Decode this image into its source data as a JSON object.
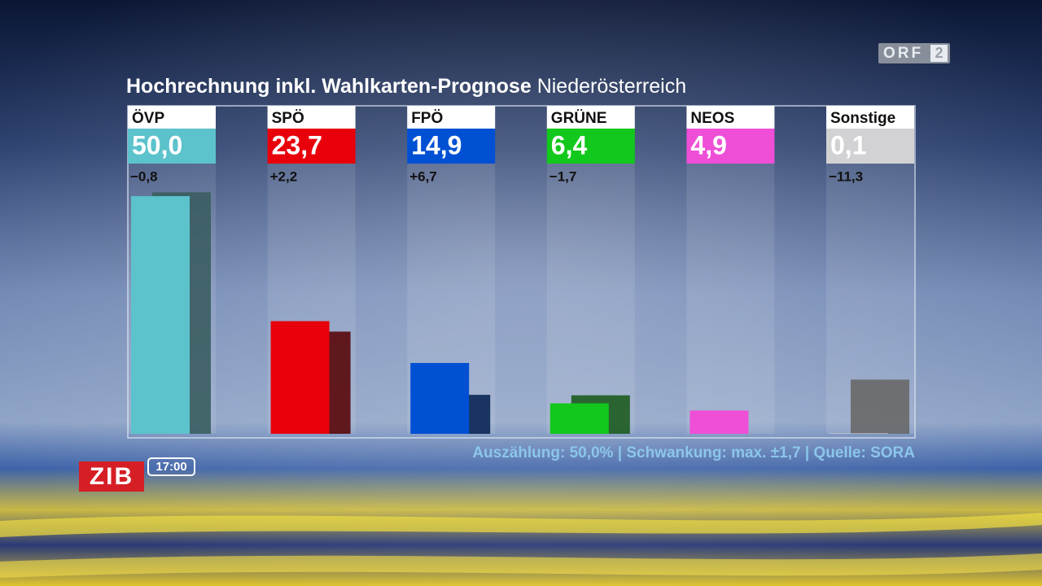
{
  "channel": {
    "name": "ORF",
    "number": "2"
  },
  "show": {
    "name": "ZIB",
    "time": "17:00"
  },
  "chart_data": {
    "type": "bar",
    "title": "Hochrechnung inkl. Wahlkarten-Prognose",
    "subtitle": "Niederösterreich",
    "categories": [
      "ÖVP",
      "SPÖ",
      "FPÖ",
      "GRÜNE",
      "NEOS",
      "Sonstige"
    ],
    "values": [
      50.0,
      23.7,
      14.9,
      6.4,
      4.9,
      0.1
    ],
    "value_labels": [
      "50,0",
      "23,7",
      "14,9",
      "6,4",
      "4,9",
      "0,1"
    ],
    "colors": [
      "#5cc2cb",
      "#e8000b",
      "#0050d4",
      "#12c81c",
      "#ee4fd6",
      "#d2d2d4"
    ],
    "changes": [
      -0.8,
      2.2,
      6.7,
      -1.7,
      null,
      -11.3
    ],
    "change_labels": [
      "−0,8",
      "+2,2",
      "+6,7",
      "−1,7",
      null,
      "−11,3"
    ],
    "previous_values": [
      50.8,
      21.5,
      8.2,
      8.1,
      null,
      11.4
    ],
    "ylim": [
      0,
      69
    ],
    "footnote": "Auszählung: 50,0% | Schwankung: max. ±1,7 | Quelle: SORA"
  }
}
